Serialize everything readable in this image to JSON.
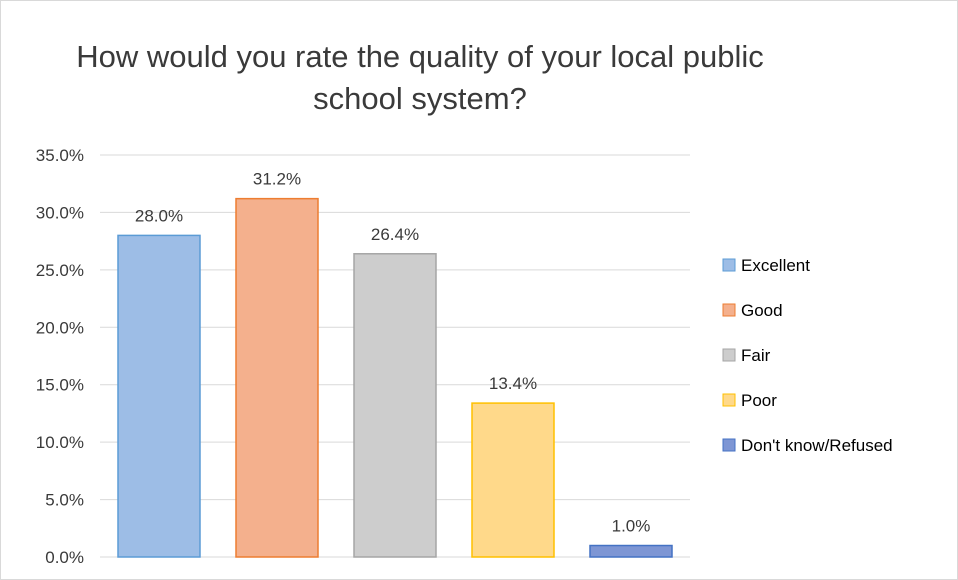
{
  "chart_data": {
    "type": "bar",
    "title": "How would you rate the quality of your local public school system?",
    "categories": [
      "Excellent",
      "Good",
      "Fair",
      "Poor",
      "Don't know/Refused"
    ],
    "values": [
      28.0,
      31.2,
      26.4,
      13.4,
      1.0
    ],
    "value_labels": [
      "28.0%",
      "31.2%",
      "26.4%",
      "13.4%",
      "1.0%"
    ],
    "ylim": [
      0,
      35
    ],
    "yticks": [
      0,
      5,
      10,
      15,
      20,
      25,
      30,
      35
    ],
    "ytick_labels": [
      "0.0%",
      "5.0%",
      "10.0%",
      "15.0%",
      "20.0%",
      "25.0%",
      "30.0%",
      "35.0%"
    ],
    "xlabel": "",
    "ylabel": "",
    "grid": true,
    "legend_position": "right",
    "colors": {
      "fills": [
        "#9dbde6",
        "#f4b08d",
        "#cdcdcd",
        "#ffd98a",
        "#7e96d4"
      ],
      "strokes": [
        "#5b9bd5",
        "#ed7d31",
        "#a5a5a5",
        "#ffc000",
        "#4472c4"
      ],
      "gridline": "#d9d9d9",
      "text": "#3a3a3a"
    }
  }
}
